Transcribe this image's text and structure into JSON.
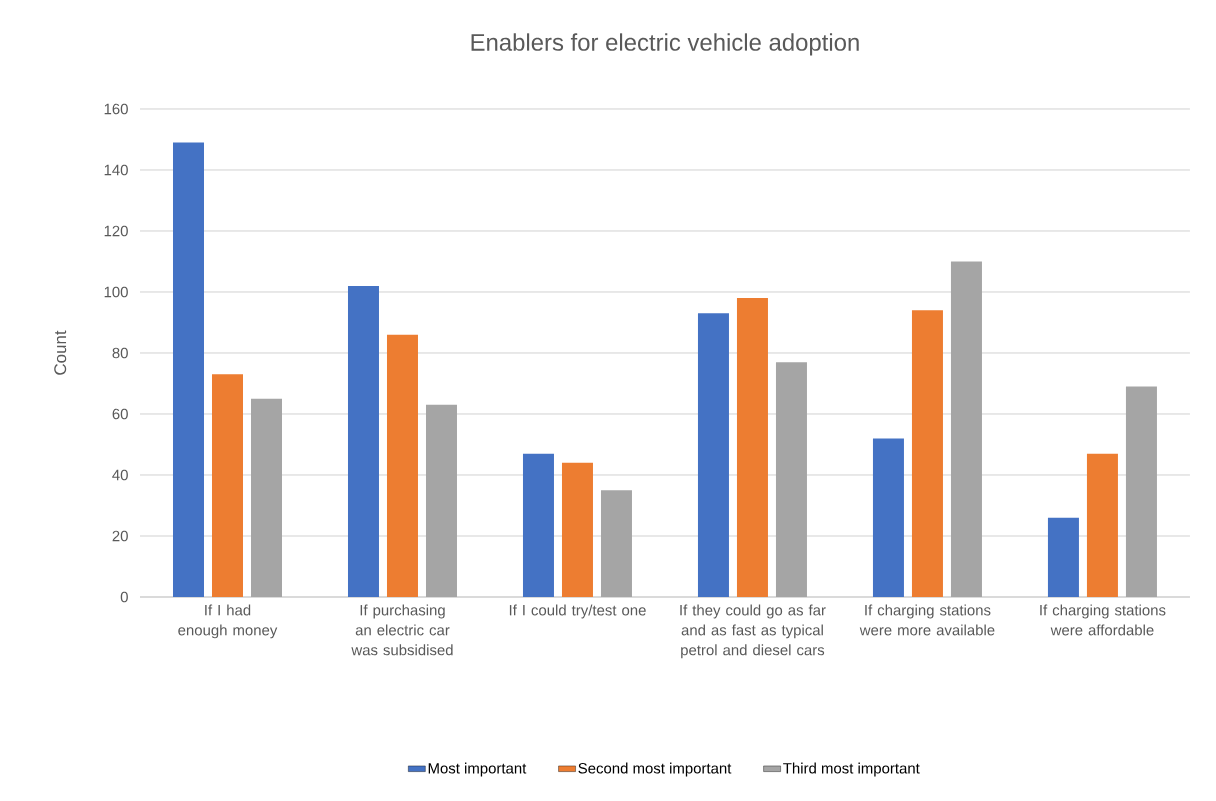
{
  "chart_data": {
    "type": "bar",
    "title": "Enablers for electric vehicle adoption",
    "ylabel": "Count",
    "categories": [
      "If I had enough money",
      "If purchasing an electric car was subsidised",
      "If I could try/test one",
      "If they could go as far and as fast as typical petrol and diesel cars",
      "If charging stations were more available",
      "If charging stations were affordable"
    ],
    "series": [
      {
        "name": "Most important",
        "color": "#4472c4",
        "values": [
          149,
          102,
          47,
          93,
          52,
          26
        ]
      },
      {
        "name": "Second most important",
        "color": "#ed7d31",
        "values": [
          73,
          86,
          44,
          98,
          94,
          47
        ]
      },
      {
        "name": "Third most important",
        "color": "#a5a5a5",
        "values": [
          65,
          63,
          35,
          77,
          110,
          69
        ]
      }
    ],
    "ylim": [
      0,
      160
    ],
    "yticks": [
      0,
      20,
      40,
      60,
      80,
      100,
      120,
      140,
      160
    ],
    "grid": "y",
    "legend": "bottom"
  }
}
